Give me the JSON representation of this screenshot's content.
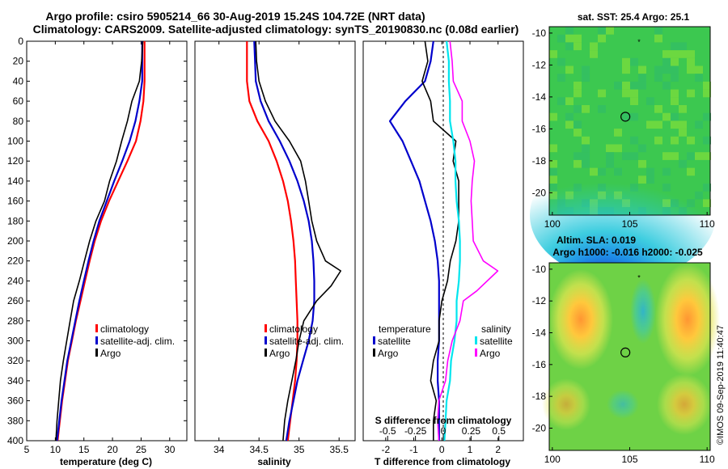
{
  "header": {
    "title_line1": "Argo profile: csiro 5905214_66 30-Aug-2019 15.24S 104.72E (NRT data)",
    "title_line2": "Climatology: CARS2009. Satellite-adjusted climatology: synTS_20190830.nc (0.08d earlier)"
  },
  "depth_ticks": [
    "0",
    "20",
    "40",
    "60",
    "80",
    "100",
    "120",
    "140",
    "160",
    "180",
    "200",
    "220",
    "240",
    "260",
    "280",
    "300",
    "320",
    "340",
    "360",
    "380",
    "400"
  ],
  "credit": "©IMOS 09-Sep-2019 11:40:47",
  "colors": {
    "climatology": "#ff0000",
    "satellite": "#0000cc",
    "argo": "#000000",
    "satellite_salinity": "#00e5ee",
    "salinity_diff": "#ff00ff"
  },
  "chart_data": [
    {
      "type": "line",
      "title": "",
      "xlabel": "temperature (deg C)",
      "ylabel": "depth",
      "xlim": [
        5,
        33
      ],
      "ylim": [
        0,
        400
      ],
      "xticks": [
        "5",
        "10",
        "15",
        "20",
        "25",
        "30"
      ],
      "legend": [
        "climatology",
        "satellite-adj. clim.",
        "Argo"
      ],
      "series": [
        {
          "name": "climatology",
          "color": "#ff0000",
          "points": [
            [
              25.6,
              0
            ],
            [
              25.6,
              20
            ],
            [
              25.6,
              40
            ],
            [
              25.4,
              60
            ],
            [
              24.9,
              80
            ],
            [
              24.1,
              100
            ],
            [
              22.6,
              120
            ],
            [
              21.0,
              140
            ],
            [
              19.4,
              160
            ],
            [
              18.0,
              180
            ],
            [
              16.9,
              200
            ],
            [
              16.0,
              220
            ],
            [
              15.2,
              240
            ],
            [
              14.4,
              260
            ],
            [
              13.6,
              280
            ],
            [
              12.9,
              300
            ],
            [
              12.2,
              320
            ],
            [
              11.7,
              340
            ],
            [
              11.2,
              360
            ],
            [
              10.8,
              380
            ],
            [
              10.4,
              400
            ]
          ]
        },
        {
          "name": "satellite-adj. clim.",
          "color": "#0000cc",
          "points": [
            [
              25.2,
              0
            ],
            [
              25.2,
              20
            ],
            [
              25.2,
              40
            ],
            [
              24.7,
              60
            ],
            [
              24.0,
              80
            ],
            [
              23.0,
              100
            ],
            [
              21.7,
              120
            ],
            [
              20.3,
              140
            ],
            [
              19.0,
              160
            ],
            [
              17.7,
              180
            ],
            [
              16.7,
              200
            ],
            [
              15.8,
              220
            ],
            [
              15.0,
              240
            ],
            [
              14.2,
              260
            ],
            [
              13.5,
              280
            ],
            [
              12.8,
              300
            ],
            [
              12.1,
              320
            ],
            [
              11.6,
              340
            ],
            [
              11.1,
              360
            ],
            [
              10.7,
              380
            ],
            [
              10.3,
              400
            ]
          ]
        },
        {
          "name": "Argo",
          "color": "#000000",
          "points": [
            [
              25.3,
              0
            ],
            [
              25.1,
              20
            ],
            [
              24.7,
              40
            ],
            [
              23.4,
              60
            ],
            [
              22.6,
              80
            ],
            [
              21.6,
              100
            ],
            [
              20.7,
              120
            ],
            [
              19.5,
              140
            ],
            [
              18.6,
              160
            ],
            [
              17.1,
              180
            ],
            [
              16.0,
              200
            ],
            [
              15.1,
              220
            ],
            [
              14.2,
              240
            ],
            [
              13.2,
              260
            ],
            [
              12.6,
              280
            ],
            [
              12.0,
              300
            ],
            [
              11.4,
              320
            ],
            [
              10.9,
              340
            ],
            [
              10.6,
              360
            ],
            [
              10.3,
              380
            ],
            [
              10.1,
              400
            ]
          ]
        }
      ]
    },
    {
      "type": "line",
      "title": "",
      "xlabel": "salinity",
      "ylabel": "depth",
      "xlim": [
        33.7,
        35.7
      ],
      "ylim": [
        0,
        400
      ],
      "xticks": [
        "34",
        "34.5",
        "35",
        "35.5"
      ],
      "legend": [
        "climatology",
        "satellite-adj. clim.",
        "Argo"
      ],
      "series": [
        {
          "name": "climatology",
          "color": "#ff0000",
          "points": [
            [
              34.35,
              0
            ],
            [
              34.35,
              20
            ],
            [
              34.35,
              40
            ],
            [
              34.38,
              60
            ],
            [
              34.48,
              80
            ],
            [
              34.62,
              100
            ],
            [
              34.72,
              120
            ],
            [
              34.8,
              140
            ],
            [
              34.86,
              160
            ],
            [
              34.9,
              180
            ],
            [
              34.93,
              200
            ],
            [
              34.95,
              220
            ],
            [
              34.96,
              240
            ],
            [
              34.97,
              260
            ],
            [
              34.98,
              280
            ],
            [
              34.98,
              300
            ],
            [
              34.97,
              320
            ],
            [
              34.95,
              340
            ],
            [
              34.92,
              360
            ],
            [
              34.89,
              380
            ],
            [
              34.86,
              400
            ]
          ]
        },
        {
          "name": "satellite-adj. clim.",
          "color": "#0000cc",
          "points": [
            [
              34.44,
              0
            ],
            [
              34.45,
              20
            ],
            [
              34.46,
              40
            ],
            [
              34.52,
              60
            ],
            [
              34.62,
              80
            ],
            [
              34.76,
              100
            ],
            [
              34.88,
              120
            ],
            [
              34.98,
              140
            ],
            [
              35.06,
              160
            ],
            [
              35.12,
              180
            ],
            [
              35.16,
              200
            ],
            [
              35.18,
              220
            ],
            [
              35.19,
              240
            ],
            [
              35.19,
              260
            ],
            [
              35.17,
              280
            ],
            [
              35.12,
              300
            ],
            [
              35.05,
              320
            ],
            [
              34.98,
              340
            ],
            [
              34.93,
              360
            ],
            [
              34.88,
              380
            ],
            [
              34.84,
              400
            ]
          ]
        },
        {
          "name": "Argo",
          "color": "#000000",
          "points": [
            [
              34.46,
              0
            ],
            [
              34.47,
              20
            ],
            [
              34.5,
              40
            ],
            [
              34.58,
              60
            ],
            [
              34.7,
              80
            ],
            [
              34.88,
              100
            ],
            [
              35.02,
              120
            ],
            [
              35.08,
              140
            ],
            [
              35.12,
              160
            ],
            [
              35.16,
              180
            ],
            [
              35.22,
              200
            ],
            [
              35.33,
              220
            ],
            [
              35.52,
              230
            ],
            [
              35.4,
              245
            ],
            [
              35.22,
              260
            ],
            [
              35.06,
              280
            ],
            [
              35.0,
              300
            ],
            [
              34.96,
              320
            ],
            [
              34.91,
              340
            ],
            [
              34.86,
              360
            ],
            [
              34.82,
              380
            ],
            [
              34.8,
              400
            ]
          ]
        }
      ]
    },
    {
      "type": "line",
      "title": "S difference from climatology",
      "xlabel": "T difference from climatology",
      "ylabel": "depth",
      "xlim": [
        -2.8,
        2.9
      ],
      "ylim": [
        0,
        400
      ],
      "xticks": [
        "-2",
        "-1",
        "0",
        "1",
        "2"
      ],
      "top_xlim": [
        -0.72,
        0.72
      ],
      "top_xticks": [
        "-0.5",
        "-0.25",
        "0",
        "0.25",
        "0.5"
      ],
      "legend_left": [
        "temperature",
        "satellite",
        "Argo"
      ],
      "legend_right": [
        "salinity",
        "satellite",
        "Argo"
      ],
      "series": [
        {
          "name": "temperature satellite",
          "axis": "bottom",
          "color": "#0000cc",
          "points": [
            [
              -0.3,
              0
            ],
            [
              -0.4,
              20
            ],
            [
              -0.6,
              40
            ],
            [
              -1.3,
              60
            ],
            [
              -1.85,
              80
            ],
            [
              -1.4,
              100
            ],
            [
              -1.1,
              120
            ],
            [
              -0.8,
              140
            ],
            [
              -0.6,
              160
            ],
            [
              -0.4,
              180
            ],
            [
              -0.25,
              200
            ],
            [
              -0.15,
              220
            ],
            [
              -0.1,
              240
            ],
            [
              -0.1,
              260
            ],
            [
              -0.1,
              280
            ],
            [
              -0.1,
              300
            ],
            [
              -0.15,
              320
            ],
            [
              -0.15,
              340
            ],
            [
              -0.1,
              360
            ],
            [
              -0.1,
              380
            ],
            [
              -0.1,
              400
            ]
          ]
        },
        {
          "name": "temperature Argo",
          "axis": "bottom",
          "color": "#000000",
          "points": [
            [
              -0.6,
              0
            ],
            [
              -0.5,
              20
            ],
            [
              -0.7,
              40
            ],
            [
              -0.4,
              60
            ],
            [
              -0.3,
              80
            ],
            [
              0.5,
              100
            ],
            [
              0.4,
              120
            ],
            [
              0.6,
              140
            ],
            [
              0.6,
              160
            ],
            [
              0.6,
              180
            ],
            [
              0.5,
              200
            ],
            [
              0.3,
              220
            ],
            [
              0.2,
              240
            ],
            [
              0.0,
              260
            ],
            [
              -0.1,
              280
            ],
            [
              -0.1,
              300
            ],
            [
              -0.3,
              320
            ],
            [
              -0.4,
              340
            ],
            [
              -0.2,
              360
            ],
            [
              -0.3,
              380
            ],
            [
              -0.3,
              400
            ]
          ]
        },
        {
          "name": "salinity satellite",
          "axis": "top",
          "color": "#00e5ee",
          "points": [
            [
              0.03,
              0
            ],
            [
              0.05,
              20
            ],
            [
              0.05,
              40
            ],
            [
              0.06,
              60
            ],
            [
              0.06,
              80
            ],
            [
              0.09,
              100
            ],
            [
              0.11,
              120
            ],
            [
              0.11,
              140
            ],
            [
              0.12,
              160
            ],
            [
              0.14,
              180
            ],
            [
              0.15,
              200
            ],
            [
              0.15,
              220
            ],
            [
              0.14,
              240
            ],
            [
              0.12,
              260
            ],
            [
              0.12,
              280
            ],
            [
              0.1,
              300
            ],
            [
              0.07,
              320
            ],
            [
              0.06,
              340
            ],
            [
              0.03,
              360
            ],
            [
              0.02,
              380
            ],
            [
              0.01,
              400
            ]
          ]
        },
        {
          "name": "salinity Argo",
          "axis": "top",
          "color": "#ff00ff",
          "points": [
            [
              0.06,
              0
            ],
            [
              0.08,
              20
            ],
            [
              0.09,
              40
            ],
            [
              0.17,
              60
            ],
            [
              0.17,
              80
            ],
            [
              0.24,
              100
            ],
            [
              0.28,
              120
            ],
            [
              0.26,
              140
            ],
            [
              0.25,
              160
            ],
            [
              0.26,
              180
            ],
            [
              0.27,
              200
            ],
            [
              0.36,
              220
            ],
            [
              0.49,
              230
            ],
            [
              0.3,
              250
            ],
            [
              0.18,
              260
            ],
            [
              0.15,
              280
            ],
            [
              0.08,
              300
            ],
            [
              0.04,
              320
            ],
            [
              0.02,
              340
            ],
            [
              -0.04,
              360
            ],
            [
              -0.05,
              380
            ],
            [
              -0.04,
              400
            ]
          ]
        }
      ]
    },
    {
      "type": "heatmap",
      "title": "sat. SST: 25.4 Argo: 25.1",
      "xticks": [
        "100",
        "105",
        "110"
      ],
      "yticks": [
        "-10",
        "-12",
        "-14",
        "-16",
        "-18",
        "-20"
      ],
      "xlim": [
        99.8,
        110.2
      ],
      "ylim": [
        -21.4,
        -9.6
      ],
      "argo_position": [
        104.72,
        -15.24
      ],
      "star_marker": [
        105.6,
        -10.5
      ]
    },
    {
      "type": "heatmap",
      "title": "Altim. SLA: 0.019",
      "subtitle": "Argo h1000: -0.016 h2000: -0.025",
      "xticks": [
        "100",
        "105",
        "110"
      ],
      "yticks": [
        "-10",
        "-12",
        "-14",
        "-16",
        "-18",
        "-20"
      ],
      "xlim": [
        99.8,
        110.2
      ],
      "ylim": [
        -21.4,
        -9.6
      ],
      "argo_position": [
        104.72,
        -15.24
      ],
      "star_marker": [
        105.6,
        -10.5
      ]
    }
  ]
}
